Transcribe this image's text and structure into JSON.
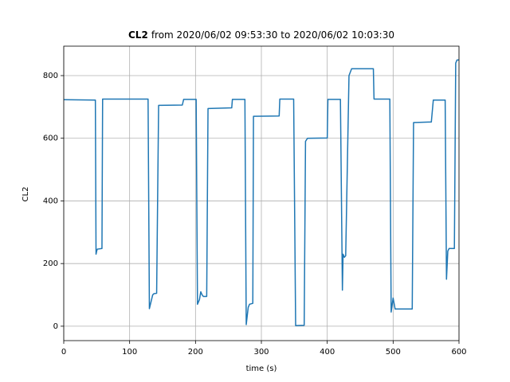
{
  "chart_data": {
    "type": "line",
    "title": [
      "CL2",
      "from 2020/06/02 09:53:30 to 2020/06/02 10:03:30"
    ],
    "xlabel": "time (s)",
    "ylabel": "CL2",
    "x": [
      0,
      48,
      49,
      50,
      51,
      58,
      59,
      128,
      130,
      135,
      137,
      141,
      144,
      180,
      182,
      201,
      203,
      206,
      208,
      210,
      212,
      217,
      219,
      255,
      256,
      275,
      277,
      280,
      282,
      287,
      288,
      327,
      328,
      349,
      352,
      365,
      367,
      370,
      400,
      401,
      420,
      423,
      424,
      426,
      428,
      433,
      437,
      470,
      471,
      495,
      497,
      500,
      503,
      529,
      531,
      558,
      561,
      579,
      581,
      583,
      585,
      593,
      595,
      597,
      600
    ],
    "series": [
      {
        "name": "CL2",
        "color": "#1f77b4",
        "values": [
          723,
          722,
          230,
          240,
          246,
          248,
          725,
          725,
          56,
          100,
          104,
          105,
          705,
          706,
          724,
          724,
          70,
          85,
          110,
          100,
          95,
          95,
          695,
          697,
          724,
          724,
          5,
          60,
          70,
          73,
          670,
          671,
          725,
          725,
          2,
          3,
          590,
          600,
          601,
          724,
          724,
          115,
          230,
          220,
          225,
          800,
          822,
          822,
          725,
          725,
          45,
          90,
          55,
          55,
          650,
          652,
          722,
          722,
          150,
          240,
          248,
          248,
          840,
          850,
          850
        ]
      }
    ],
    "xlim": [
      0,
      600
    ],
    "ylim": [
      -46,
      894
    ],
    "xticks": [
      0,
      100,
      200,
      300,
      400,
      500,
      600
    ],
    "yticks": [
      0,
      200,
      400,
      600,
      800
    ],
    "grid": true
  }
}
